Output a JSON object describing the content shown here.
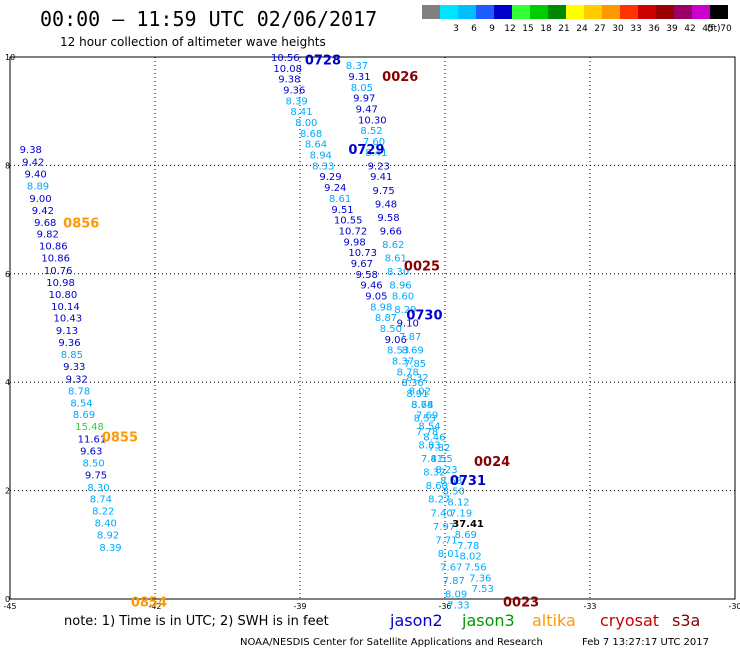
{
  "header": {
    "title": "00:00 – 11:59 UTC 02/06/2017",
    "subtitle": "12 hour collection of altimeter wave heights",
    "legend_unit": "(ft)",
    "legend": [
      {
        "label": "",
        "color": "#808080"
      },
      {
        "label": "3",
        "color": "#00e5ff"
      },
      {
        "label": "6",
        "color": "#00bfff"
      },
      {
        "label": "9",
        "color": "#1e5bff"
      },
      {
        "label": "12",
        "color": "#0000cc"
      },
      {
        "label": "15",
        "color": "#33ff33"
      },
      {
        "label": "18",
        "color": "#00cc00"
      },
      {
        "label": "21",
        "color": "#008800"
      },
      {
        "label": "24",
        "color": "#ffff00"
      },
      {
        "label": "27",
        "color": "#ffcc00"
      },
      {
        "label": "30",
        "color": "#ff9900"
      },
      {
        "label": "33",
        "color": "#ff3300"
      },
      {
        "label": "36",
        "color": "#cc0000"
      },
      {
        "label": "39",
        "color": "#990000"
      },
      {
        "label": "42",
        "color": "#990066"
      },
      {
        "label": "45",
        "color": "#cc00cc"
      },
      {
        "label": "70",
        "color": "#000000"
      }
    ]
  },
  "footer": {
    "note": "note:  1) Time is in UTC;  2) SWH is in feet",
    "credit": "NOAA/NESDIS Center for Satellite Applications and Research",
    "timestamp": "Feb  7 13:27:17 UTC 2017",
    "satellites": [
      {
        "name": "jason2",
        "color": "#0000cc"
      },
      {
        "name": "jason3",
        "color": "#009900"
      },
      {
        "name": "altika",
        "color": "#ff9900"
      },
      {
        "name": "cryosat",
        "color": "#cc0000"
      },
      {
        "name": "s3a",
        "color": "#880000"
      }
    ]
  },
  "chart_data": {
    "type": "scatter",
    "title": "00:00 – 11:59 UTC 02/06/2017",
    "subtitle": "12 hour collection of altimeter wave heights",
    "xlim": [
      -45,
      -30
    ],
    "ylim": [
      0,
      10
    ],
    "x_ticks": [
      "-45",
      "-42",
      "-39",
      "-36",
      "-33",
      "-30"
    ],
    "y_ticks": [
      "0",
      "2",
      "4",
      "6",
      "8",
      "10"
    ],
    "grid": true,
    "tracks": [
      {
        "name": "jason2",
        "points": [
          {
            "x": -44.8,
            "y": 8.3,
            "v": "9.38"
          },
          {
            "x": -44.75,
            "y": 8.07,
            "v": "9.42"
          },
          {
            "x": -44.7,
            "y": 7.85,
            "v": "9.40"
          },
          {
            "x": -44.65,
            "y": 7.63,
            "v": "8.89"
          },
          {
            "x": -44.6,
            "y": 7.4,
            "v": "9.00"
          },
          {
            "x": -44.55,
            "y": 7.18,
            "v": "9.42"
          },
          {
            "x": -44.5,
            "y": 6.96,
            "v": "9.68"
          },
          {
            "x": -44.45,
            "y": 6.74,
            "v": "9.82"
          },
          {
            "x": -44.4,
            "y": 6.52,
            "v": "10.86"
          },
          {
            "x": -44.35,
            "y": 6.3,
            "v": "10.86"
          },
          {
            "x": -44.3,
            "y": 6.07,
            "v": "10.76"
          },
          {
            "x": -44.25,
            "y": 5.85,
            "v": "10.98"
          },
          {
            "x": -44.2,
            "y": 5.63,
            "v": "10.80"
          },
          {
            "x": -44.15,
            "y": 5.41,
            "v": "10.14"
          },
          {
            "x": -44.1,
            "y": 5.19,
            "v": "10.43"
          },
          {
            "x": -44.05,
            "y": 4.96,
            "v": "9.13"
          },
          {
            "x": -44.0,
            "y": 4.74,
            "v": "9.36"
          },
          {
            "x": -43.95,
            "y": 4.52,
            "v": "8.85"
          },
          {
            "x": -43.9,
            "y": 4.3,
            "v": "9.33"
          },
          {
            "x": -43.85,
            "y": 4.07,
            "v": "9.32"
          },
          {
            "x": -43.8,
            "y": 3.85,
            "v": "8.78"
          },
          {
            "x": -43.75,
            "y": 3.63,
            "v": "8.54"
          },
          {
            "x": -43.7,
            "y": 3.41,
            "v": "8.69"
          },
          {
            "x": -43.65,
            "y": 3.19,
            "v": "15.48"
          },
          {
            "x": -43.6,
            "y": 2.96,
            "v": "11.61"
          },
          {
            "x": -43.55,
            "y": 2.74,
            "v": "9.63"
          },
          {
            "x": -43.5,
            "y": 2.52,
            "v": "8.50"
          },
          {
            "x": -43.45,
            "y": 2.3,
            "v": "9.75"
          },
          {
            "x": -43.4,
            "y": 2.07,
            "v": "8.30"
          },
          {
            "x": -43.35,
            "y": 1.85,
            "v": "8.74"
          },
          {
            "x": -43.3,
            "y": 1.63,
            "v": "8.22"
          },
          {
            "x": -43.25,
            "y": 1.41,
            "v": "8.40"
          },
          {
            "x": -43.2,
            "y": 1.19,
            "v": "8.92"
          },
          {
            "x": -43.15,
            "y": 0.96,
            "v": "8.39"
          }
        ]
      },
      {
        "name": "jason2",
        "points": [
          {
            "x": -39.6,
            "y": 10.0,
            "v": "10.56"
          },
          {
            "x": -39.55,
            "y": 9.8,
            "v": "10.08"
          },
          {
            "x": -39.45,
            "y": 9.6,
            "v": "9.38"
          },
          {
            "x": -39.35,
            "y": 9.4,
            "v": "9.36"
          },
          {
            "x": -39.3,
            "y": 9.2,
            "v": "8.39"
          },
          {
            "x": -39.2,
            "y": 9.0,
            "v": "8.41"
          },
          {
            "x": -39.1,
            "y": 8.8,
            "v": "8.00"
          },
          {
            "x": -39.0,
            "y": 8.6,
            "v": "8.68"
          },
          {
            "x": -38.9,
            "y": 8.4,
            "v": "8.64"
          },
          {
            "x": -38.8,
            "y": 8.2,
            "v": "8.94"
          },
          {
            "x": -38.75,
            "y": 8.0,
            "v": "8.33"
          },
          {
            "x": -38.6,
            "y": 7.8,
            "v": "9.29"
          },
          {
            "x": -38.5,
            "y": 7.6,
            "v": "9.24"
          },
          {
            "x": -38.4,
            "y": 7.4,
            "v": "8.61"
          },
          {
            "x": -38.35,
            "y": 7.2,
            "v": "9.51"
          },
          {
            "x": -38.3,
            "y": 7.0,
            "v": "10.55"
          },
          {
            "x": -38.2,
            "y": 6.8,
            "v": "10.72"
          },
          {
            "x": -38.1,
            "y": 6.6,
            "v": "9.98"
          },
          {
            "x": -38.0,
            "y": 6.4,
            "v": "10.73"
          },
          {
            "x": -37.95,
            "y": 6.2,
            "v": "9.67"
          },
          {
            "x": -37.85,
            "y": 6.0,
            "v": "9.58"
          },
          {
            "x": -37.75,
            "y": 5.8,
            "v": "9.46"
          },
          {
            "x": -37.65,
            "y": 5.6,
            "v": "9.05"
          },
          {
            "x": -37.55,
            "y": 5.4,
            "v": "8.98"
          },
          {
            "x": -37.45,
            "y": 5.2,
            "v": "8.87"
          },
          {
            "x": -37.35,
            "y": 5.0,
            "v": "8.50"
          },
          {
            "x": -37.25,
            "y": 4.8,
            "v": "9.06"
          },
          {
            "x": -37.2,
            "y": 4.6,
            "v": "8.53"
          },
          {
            "x": -37.1,
            "y": 4.4,
            "v": "8.37"
          },
          {
            "x": -37.0,
            "y": 4.2,
            "v": "8.78"
          },
          {
            "x": -36.9,
            "y": 4.0,
            "v": "8.36"
          },
          {
            "x": -36.8,
            "y": 3.8,
            "v": "8.91"
          },
          {
            "x": -36.7,
            "y": 3.6,
            "v": "8.74"
          },
          {
            "x": -36.6,
            "y": 3.4,
            "v": "7.69"
          },
          {
            "x": -36.55,
            "y": 3.2,
            "v": "8.54"
          },
          {
            "x": -36.45,
            "y": 3.0,
            "v": "8.46"
          },
          {
            "x": -36.35,
            "y": 2.8,
            "v": "7.82"
          },
          {
            "x": -36.3,
            "y": 2.6,
            "v": "8.55"
          },
          {
            "x": -36.2,
            "y": 2.4,
            "v": "8.23"
          },
          {
            "x": -36.1,
            "y": 2.2,
            "v": "8.53"
          },
          {
            "x": -36.05,
            "y": 2.0,
            "v": "8.50"
          },
          {
            "x": -35.95,
            "y": 1.8,
            "v": "8.12"
          },
          {
            "x": -35.9,
            "y": 1.6,
            "v": "7.19"
          },
          {
            "x": -35.85,
            "y": 1.4,
            "v": "37.41"
          },
          {
            "x": -35.8,
            "y": 1.2,
            "v": "8.69"
          },
          {
            "x": -35.75,
            "y": 1.0,
            "v": "7.78"
          },
          {
            "x": -35.7,
            "y": 0.8,
            "v": "8.02"
          },
          {
            "x": -35.6,
            "y": 0.6,
            "v": "7.56"
          },
          {
            "x": -35.5,
            "y": 0.4,
            "v": "7.36"
          },
          {
            "x": -35.45,
            "y": 0.2,
            "v": "7.53"
          }
        ]
      },
      {
        "name": "jason3",
        "points": [
          {
            "x": -38.05,
            "y": 9.85,
            "v": "8.37"
          },
          {
            "x": -38.0,
            "y": 9.65,
            "v": "9.31"
          },
          {
            "x": -37.95,
            "y": 9.45,
            "v": "8.05"
          },
          {
            "x": -37.9,
            "y": 9.25,
            "v": "9.97"
          },
          {
            "x": -37.85,
            "y": 9.05,
            "v": "9.47"
          },
          {
            "x": -37.8,
            "y": 8.85,
            "v": "10.30"
          },
          {
            "x": -37.75,
            "y": 8.65,
            "v": "8.52"
          },
          {
            "x": -37.7,
            "y": 8.45,
            "v": "7.60"
          },
          {
            "x": -37.65,
            "y": 8.25,
            "v": "8.41"
          },
          {
            "x": -37.6,
            "y": 8.0,
            "v": "9.23"
          },
          {
            "x": -37.55,
            "y": 7.8,
            "v": "9.41"
          },
          {
            "x": -37.5,
            "y": 7.55,
            "v": "9.75"
          },
          {
            "x": -37.45,
            "y": 7.3,
            "v": "9.48"
          },
          {
            "x": -37.4,
            "y": 7.05,
            "v": "9.58"
          },
          {
            "x": -37.35,
            "y": 6.8,
            "v": "9.66"
          },
          {
            "x": -37.3,
            "y": 6.55,
            "v": "8.62"
          },
          {
            "x": -37.25,
            "y": 6.3,
            "v": "8.61"
          },
          {
            "x": -37.2,
            "y": 6.05,
            "v": "8.30"
          },
          {
            "x": -37.15,
            "y": 5.8,
            "v": "8.96"
          },
          {
            "x": -37.1,
            "y": 5.6,
            "v": "8.60"
          },
          {
            "x": -37.05,
            "y": 5.35,
            "v": "8.29"
          },
          {
            "x": -37.0,
            "y": 5.1,
            "v": "9.10"
          },
          {
            "x": -36.95,
            "y": 4.85,
            "v": "7.87"
          },
          {
            "x": -36.9,
            "y": 4.6,
            "v": "8.69"
          },
          {
            "x": -36.85,
            "y": 4.35,
            "v": "7.85"
          },
          {
            "x": -36.8,
            "y": 4.1,
            "v": "8.32"
          },
          {
            "x": -36.75,
            "y": 3.85,
            "v": "8.02"
          },
          {
            "x": -36.7,
            "y": 3.6,
            "v": "8.68"
          },
          {
            "x": -36.65,
            "y": 3.35,
            "v": "8.53"
          },
          {
            "x": -36.6,
            "y": 3.1,
            "v": "7.78"
          },
          {
            "x": -36.55,
            "y": 2.85,
            "v": "8.83"
          },
          {
            "x": -36.5,
            "y": 2.6,
            "v": "7.41"
          },
          {
            "x": -36.45,
            "y": 2.35,
            "v": "8.32"
          },
          {
            "x": -36.4,
            "y": 2.1,
            "v": "8.60"
          },
          {
            "x": -36.35,
            "y": 1.85,
            "v": "8.27"
          },
          {
            "x": -36.3,
            "y": 1.6,
            "v": "7.40"
          },
          {
            "x": -36.25,
            "y": 1.35,
            "v": "7.97"
          },
          {
            "x": -36.2,
            "y": 1.1,
            "v": "7.71"
          },
          {
            "x": -36.15,
            "y": 0.85,
            "v": "8.01"
          },
          {
            "x": -36.1,
            "y": 0.6,
            "v": "7.67"
          },
          {
            "x": -36.05,
            "y": 0.35,
            "v": "7.87"
          },
          {
            "x": -36.0,
            "y": 0.1,
            "v": "8.09"
          },
          {
            "x": -35.95,
            "y": -0.1,
            "v": "7.33"
          }
        ]
      }
    ],
    "time_labels": [
      {
        "text": "0728",
        "x": -38.9,
        "y": 9.95,
        "satellite": "jason2"
      },
      {
        "text": "0729",
        "x": -38.0,
        "y": 8.3,
        "satellite": "jason2"
      },
      {
        "text": "0730",
        "x": -36.8,
        "y": 5.25,
        "satellite": "jason2"
      },
      {
        "text": "0731",
        "x": -35.9,
        "y": 2.2,
        "satellite": "jason2"
      },
      {
        "text": "0856",
        "x": -43.9,
        "y": 6.95,
        "satellite": "altika"
      },
      {
        "text": "0855",
        "x": -43.1,
        "y": 3.0,
        "satellite": "altika"
      },
      {
        "text": "0854",
        "x": -42.5,
        "y": -0.05,
        "satellite": "altika"
      },
      {
        "text": "0026",
        "x": -37.3,
        "y": 9.65,
        "satellite": "s3a"
      },
      {
        "text": "0025",
        "x": -36.85,
        "y": 6.15,
        "satellite": "s3a"
      },
      {
        "text": "0024",
        "x": -35.4,
        "y": 2.55,
        "satellite": "s3a"
      },
      {
        "text": "0023",
        "x": -34.8,
        "y": -0.05,
        "satellite": "s3a"
      }
    ]
  }
}
